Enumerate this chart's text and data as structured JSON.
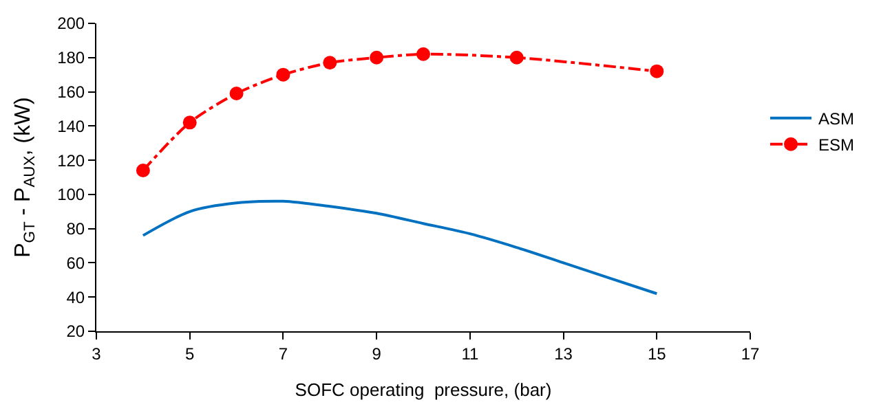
{
  "chart_data": {
    "type": "line",
    "xlabel": "SOFC operating  pressure, (bar)",
    "ylabel": "P$_{GT}$ - P$_{AUX}$, (kW)",
    "xlim": [
      3,
      17
    ],
    "xticks": [
      3,
      5,
      7,
      9,
      11,
      13,
      15,
      17
    ],
    "ylim": [
      20,
      200
    ],
    "yticks": [
      20,
      40,
      60,
      80,
      100,
      120,
      140,
      160,
      180,
      200
    ],
    "legend": "right",
    "series": [
      {
        "name": "ASM",
        "color": "#0070c0",
        "marker": "none",
        "line_style": "solid",
        "x": [
          4,
          5,
          6,
          7,
          8,
          9,
          10,
          11,
          12,
          13,
          14,
          15
        ],
        "values": [
          76,
          90,
          95,
          96,
          93,
          89,
          83,
          77,
          69,
          60,
          51,
          42
        ]
      },
      {
        "name": "ESM",
        "color": "#ff0000",
        "marker": "circle",
        "line_style": "dashed",
        "x": [
          4,
          5,
          6,
          7,
          8,
          9,
          10,
          12,
          15
        ],
        "values": [
          114,
          142,
          159,
          170,
          177,
          180,
          182,
          180,
          172
        ]
      }
    ]
  }
}
